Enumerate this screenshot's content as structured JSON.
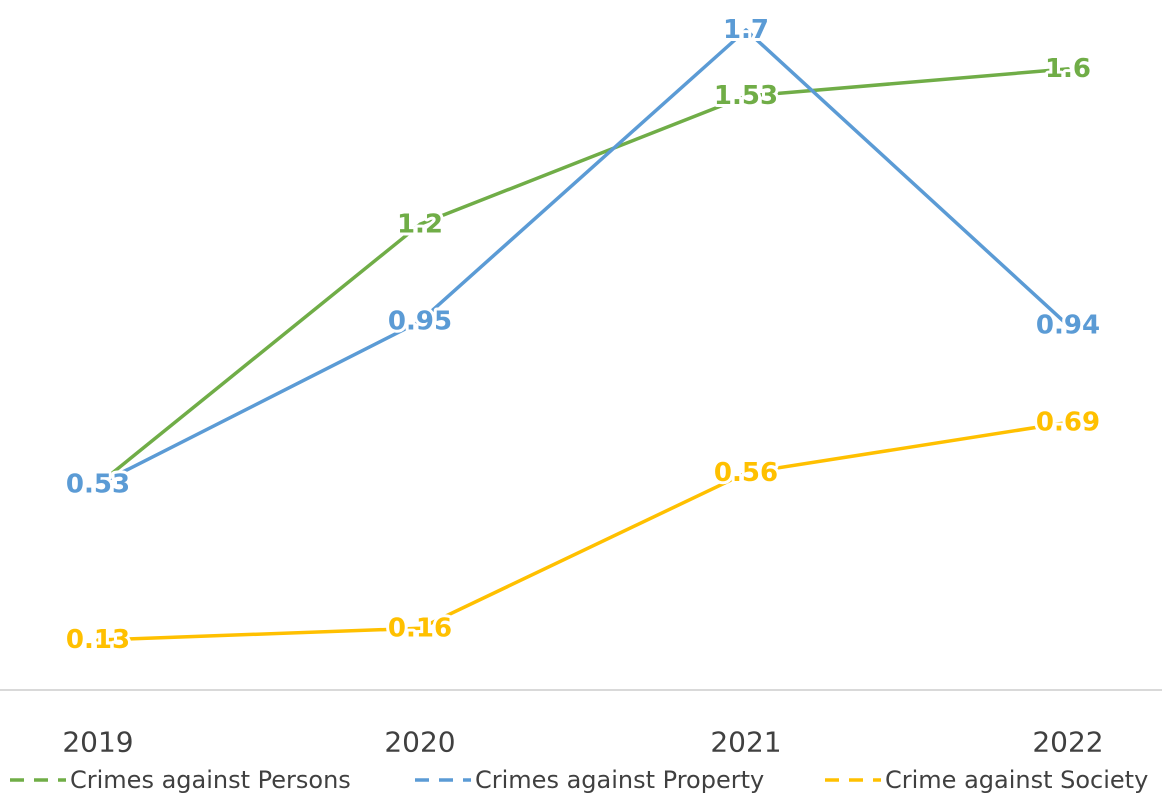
{
  "chart_data": {
    "type": "line",
    "categories": [
      "2019",
      "2020",
      "2021",
      "2022"
    ],
    "series": [
      {
        "name": "Crimes against Persons",
        "values": [
          0.53,
          1.2,
          1.53,
          1.6
        ],
        "color": "#70AD47",
        "labels": [
          "",
          "1.2",
          "1.53",
          "1.6"
        ]
      },
      {
        "name": "Crimes against Property",
        "values": [
          0.53,
          0.95,
          1.7,
          0.94
        ],
        "color": "#5B9BD5",
        "labels": [
          "0.53",
          "0.95",
          "1.7",
          "0.94"
        ]
      },
      {
        "name": "Crime against Society",
        "values": [
          0.13,
          0.16,
          0.56,
          0.69
        ],
        "color": "#FFC000",
        "labels": [
          "0.13",
          "0.16",
          "0.56",
          "0.69"
        ]
      }
    ],
    "grid": false,
    "legend_position": "bottom"
  }
}
